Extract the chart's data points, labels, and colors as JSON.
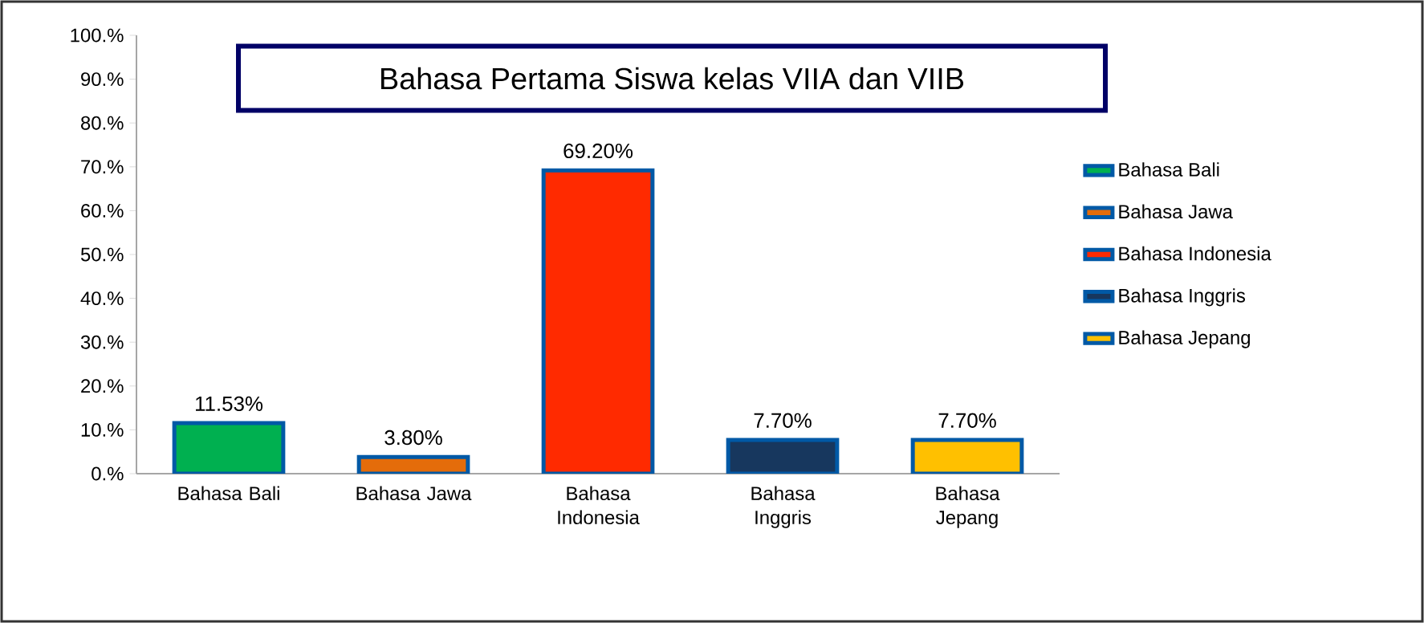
{
  "chart_data": {
    "type": "bar",
    "title": "Bahasa  Pertama Siswa kelas VIIA dan VIIB",
    "categories": [
      "Bahasa Bali",
      "Bahasa Jawa",
      "Bahasa Indonesia",
      "Bahasa Inggris",
      "Bahasa Jepang"
    ],
    "series": [
      {
        "name": "Bahasa Bali",
        "color": "#00b050",
        "values": [
          11.53,
          null,
          null,
          null,
          null
        ],
        "value_labels": [
          "11.53%",
          null,
          null,
          null,
          null
        ]
      },
      {
        "name": "Bahasa Jawa",
        "color": "#e46c0a",
        "values": [
          null,
          3.8,
          null,
          null,
          null
        ],
        "value_labels": [
          null,
          "3.80%",
          null,
          null,
          null
        ]
      },
      {
        "name": "Bahasa Indonesia",
        "color": "#ff2a00",
        "values": [
          null,
          null,
          69.2,
          null,
          null
        ],
        "value_labels": [
          null,
          null,
          "69.20%",
          null,
          null
        ]
      },
      {
        "name": "Bahasa Inggris",
        "color": "#17375e",
        "values": [
          null,
          null,
          null,
          7.7,
          null
        ],
        "value_labels": [
          null,
          null,
          null,
          "7.70%",
          null
        ]
      },
      {
        "name": "Bahasa Jepang",
        "color": "#ffc000",
        "values": [
          null,
          null,
          null,
          null,
          7.7
        ],
        "value_labels": [
          null,
          null,
          null,
          null,
          "7.70%"
        ]
      }
    ],
    "ylim": [
      0,
      100
    ],
    "yticks": [
      {
        "value": 0,
        "label": "0.%"
      },
      {
        "value": 10,
        "label": "10.%"
      },
      {
        "value": 20,
        "label": "20.%"
      },
      {
        "value": 30,
        "label": "30.%"
      },
      {
        "value": 40,
        "label": "40.%"
      },
      {
        "value": 50,
        "label": "50.%"
      },
      {
        "value": 60,
        "label": "60.%"
      },
      {
        "value": 70,
        "label": "70.%"
      },
      {
        "value": 80,
        "label": "80.%"
      },
      {
        "value": 90,
        "label": "90.%"
      },
      {
        "value": 100,
        "label": "100.%"
      }
    ],
    "legend": "right",
    "grid": false
  }
}
